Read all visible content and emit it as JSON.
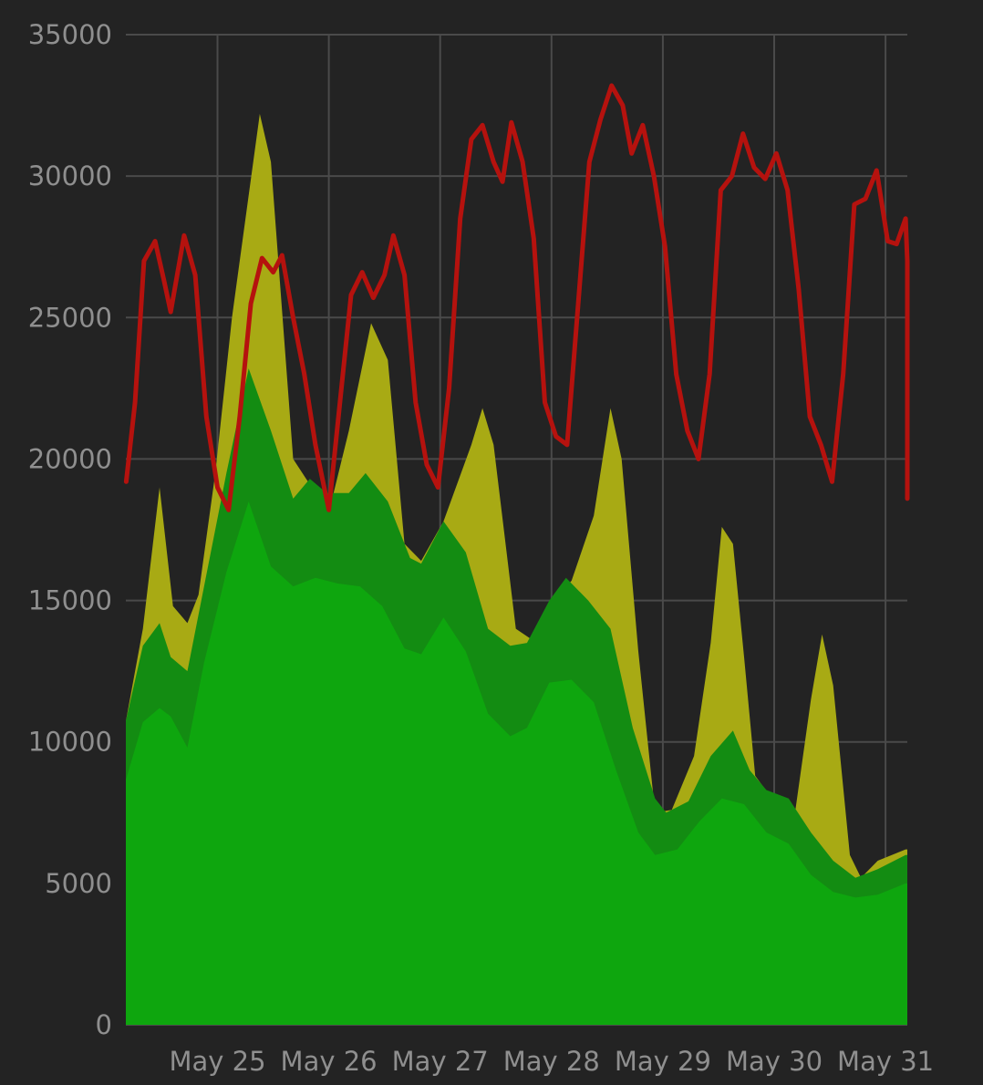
{
  "chart_data": {
    "type": "area",
    "x_unit": "days_from_May_24_00:00",
    "xlim": [
      0.8,
      7.8
    ],
    "ylim": [
      0,
      35000
    ],
    "y_ticks": [
      0,
      5000,
      10000,
      15000,
      20000,
      25000,
      30000,
      35000
    ],
    "y_tick_labels": [
      "0",
      "5000",
      "10000",
      "15000",
      "20000",
      "25000",
      "30000",
      "35000"
    ],
    "x_ticks": [
      1.62,
      2.62,
      3.62,
      4.62,
      5.62,
      6.62,
      7.62
    ],
    "x_tick_labels": [
      "May 25",
      "May 26",
      "May 27",
      "May 28",
      "May 29",
      "May 30",
      "May 31"
    ],
    "grid": true,
    "legend": "none",
    "series": [
      {
        "color": "#a8aa14",
        "kind": "area",
        "points": [
          [
            0.8,
            10800
          ],
          [
            0.95,
            14000
          ],
          [
            1.1,
            19000
          ],
          [
            1.22,
            14800
          ],
          [
            1.35,
            14200
          ],
          [
            1.45,
            15200
          ],
          [
            1.6,
            19500
          ],
          [
            1.75,
            25000
          ],
          [
            2.0,
            32200
          ],
          [
            2.1,
            30500
          ],
          [
            2.3,
            20000
          ],
          [
            2.5,
            18800
          ],
          [
            2.65,
            18600
          ],
          [
            2.8,
            21000
          ],
          [
            3.0,
            24800
          ],
          [
            3.15,
            23500
          ],
          [
            3.3,
            17000
          ],
          [
            3.45,
            16400
          ],
          [
            3.65,
            17800
          ],
          [
            3.9,
            20500
          ],
          [
            4.0,
            21800
          ],
          [
            4.1,
            20500
          ],
          [
            4.3,
            14000
          ],
          [
            4.45,
            13600
          ],
          [
            4.6,
            14800
          ],
          [
            4.8,
            15700
          ],
          [
            5.0,
            18000
          ],
          [
            5.15,
            21800
          ],
          [
            5.25,
            20000
          ],
          [
            5.4,
            13200
          ],
          [
            5.55,
            7500
          ],
          [
            5.7,
            7600
          ],
          [
            5.9,
            9500
          ],
          [
            6.05,
            13500
          ],
          [
            6.15,
            17600
          ],
          [
            6.25,
            17000
          ],
          [
            6.35,
            13000
          ],
          [
            6.45,
            8800
          ],
          [
            6.6,
            8000
          ],
          [
            6.8,
            7300
          ],
          [
            6.95,
            11500
          ],
          [
            7.05,
            13800
          ],
          [
            7.15,
            12000
          ],
          [
            7.3,
            6000
          ],
          [
            7.4,
            5200
          ],
          [
            7.55,
            5800
          ],
          [
            7.8,
            6200
          ]
        ]
      },
      {
        "color": "#138c12",
        "kind": "area",
        "points": [
          [
            0.8,
            10800
          ],
          [
            0.95,
            13400
          ],
          [
            1.1,
            14200
          ],
          [
            1.2,
            13000
          ],
          [
            1.35,
            12500
          ],
          [
            1.5,
            15500
          ],
          [
            1.7,
            19500
          ],
          [
            1.9,
            23200
          ],
          [
            2.1,
            21000
          ],
          [
            2.3,
            18600
          ],
          [
            2.45,
            19300
          ],
          [
            2.6,
            18800
          ],
          [
            2.8,
            18800
          ],
          [
            2.95,
            19500
          ],
          [
            3.15,
            18500
          ],
          [
            3.35,
            16500
          ],
          [
            3.45,
            16300
          ],
          [
            3.65,
            17800
          ],
          [
            3.85,
            16700
          ],
          [
            4.05,
            14000
          ],
          [
            4.25,
            13400
          ],
          [
            4.4,
            13500
          ],
          [
            4.6,
            15000
          ],
          [
            4.75,
            15800
          ],
          [
            4.95,
            15000
          ],
          [
            5.15,
            14000
          ],
          [
            5.35,
            10500
          ],
          [
            5.55,
            8000
          ],
          [
            5.65,
            7500
          ],
          [
            5.85,
            7900
          ],
          [
            6.05,
            9500
          ],
          [
            6.25,
            10400
          ],
          [
            6.4,
            9000
          ],
          [
            6.55,
            8300
          ],
          [
            6.75,
            8000
          ],
          [
            6.95,
            6800
          ],
          [
            7.15,
            5800
          ],
          [
            7.35,
            5200
          ],
          [
            7.55,
            5500
          ],
          [
            7.8,
            6000
          ]
        ]
      },
      {
        "color": "#0ea60e",
        "kind": "area",
        "points": [
          [
            0.8,
            8700
          ],
          [
            0.95,
            10700
          ],
          [
            1.1,
            11200
          ],
          [
            1.2,
            10900
          ],
          [
            1.35,
            9800
          ],
          [
            1.5,
            12800
          ],
          [
            1.7,
            16000
          ],
          [
            1.9,
            18500
          ],
          [
            2.1,
            16200
          ],
          [
            2.3,
            15500
          ],
          [
            2.5,
            15800
          ],
          [
            2.7,
            15600
          ],
          [
            2.9,
            15500
          ],
          [
            3.1,
            14800
          ],
          [
            3.3,
            13300
          ],
          [
            3.45,
            13100
          ],
          [
            3.65,
            14400
          ],
          [
            3.85,
            13200
          ],
          [
            4.05,
            11000
          ],
          [
            4.25,
            10200
          ],
          [
            4.4,
            10500
          ],
          [
            4.6,
            12100
          ],
          [
            4.8,
            12200
          ],
          [
            5.0,
            11400
          ],
          [
            5.2,
            9000
          ],
          [
            5.4,
            6800
          ],
          [
            5.55,
            6000
          ],
          [
            5.75,
            6200
          ],
          [
            5.95,
            7200
          ],
          [
            6.15,
            8000
          ],
          [
            6.35,
            7800
          ],
          [
            6.55,
            6800
          ],
          [
            6.75,
            6400
          ],
          [
            6.95,
            5300
          ],
          [
            7.15,
            4700
          ],
          [
            7.35,
            4500
          ],
          [
            7.55,
            4600
          ],
          [
            7.8,
            5000
          ]
        ]
      },
      {
        "color": "#b5120e",
        "kind": "line",
        "points": [
          [
            0.8,
            19200
          ],
          [
            0.88,
            22000
          ],
          [
            0.96,
            27000
          ],
          [
            1.06,
            27700
          ],
          [
            1.14,
            26300
          ],
          [
            1.2,
            25200
          ],
          [
            1.32,
            27900
          ],
          [
            1.42,
            26500
          ],
          [
            1.52,
            21500
          ],
          [
            1.62,
            19000
          ],
          [
            1.72,
            18200
          ],
          [
            1.82,
            21500
          ],
          [
            1.92,
            25500
          ],
          [
            2.02,
            27100
          ],
          [
            2.12,
            26600
          ],
          [
            2.2,
            27200
          ],
          [
            2.3,
            25000
          ],
          [
            2.4,
            23000
          ],
          [
            2.5,
            20500
          ],
          [
            2.62,
            18200
          ],
          [
            2.72,
            22000
          ],
          [
            2.82,
            25800
          ],
          [
            2.92,
            26600
          ],
          [
            3.02,
            25700
          ],
          [
            3.12,
            26500
          ],
          [
            3.2,
            27900
          ],
          [
            3.3,
            26500
          ],
          [
            3.4,
            22000
          ],
          [
            3.5,
            19800
          ],
          [
            3.6,
            19000
          ],
          [
            3.7,
            22500
          ],
          [
            3.8,
            28500
          ],
          [
            3.9,
            31300
          ],
          [
            4.0,
            31800
          ],
          [
            4.1,
            30500
          ],
          [
            4.18,
            29800
          ],
          [
            4.26,
            31900
          ],
          [
            4.36,
            30500
          ],
          [
            4.46,
            27800
          ],
          [
            4.56,
            22000
          ],
          [
            4.66,
            20800
          ],
          [
            4.76,
            20500
          ],
          [
            4.86,
            25500
          ],
          [
            4.96,
            30500
          ],
          [
            5.06,
            32000
          ],
          [
            5.16,
            33200
          ],
          [
            5.26,
            32500
          ],
          [
            5.34,
            30800
          ],
          [
            5.44,
            31800
          ],
          [
            5.54,
            30000
          ],
          [
            5.64,
            27500
          ],
          [
            5.74,
            23000
          ],
          [
            5.84,
            21000
          ],
          [
            5.94,
            20000
          ],
          [
            6.04,
            23000
          ],
          [
            6.14,
            29500
          ],
          [
            6.24,
            30000
          ],
          [
            6.34,
            31500
          ],
          [
            6.44,
            30300
          ],
          [
            6.54,
            29900
          ],
          [
            6.64,
            30800
          ],
          [
            6.74,
            29500
          ],
          [
            6.84,
            26000
          ],
          [
            6.94,
            21500
          ],
          [
            7.04,
            20500
          ],
          [
            7.14,
            19200
          ],
          [
            7.24,
            23000
          ],
          [
            7.34,
            29000
          ],
          [
            7.44,
            29200
          ],
          [
            7.54,
            30200
          ],
          [
            7.64,
            27700
          ],
          [
            7.72,
            27600
          ],
          [
            7.8,
            28500
          ],
          [
            7.88,
            27000
          ],
          [
            7.96,
            25500
          ],
          [
            8.06,
            21000
          ],
          [
            8.16,
            19800
          ],
          [
            8.24,
            18600
          ]
        ]
      }
    ]
  }
}
